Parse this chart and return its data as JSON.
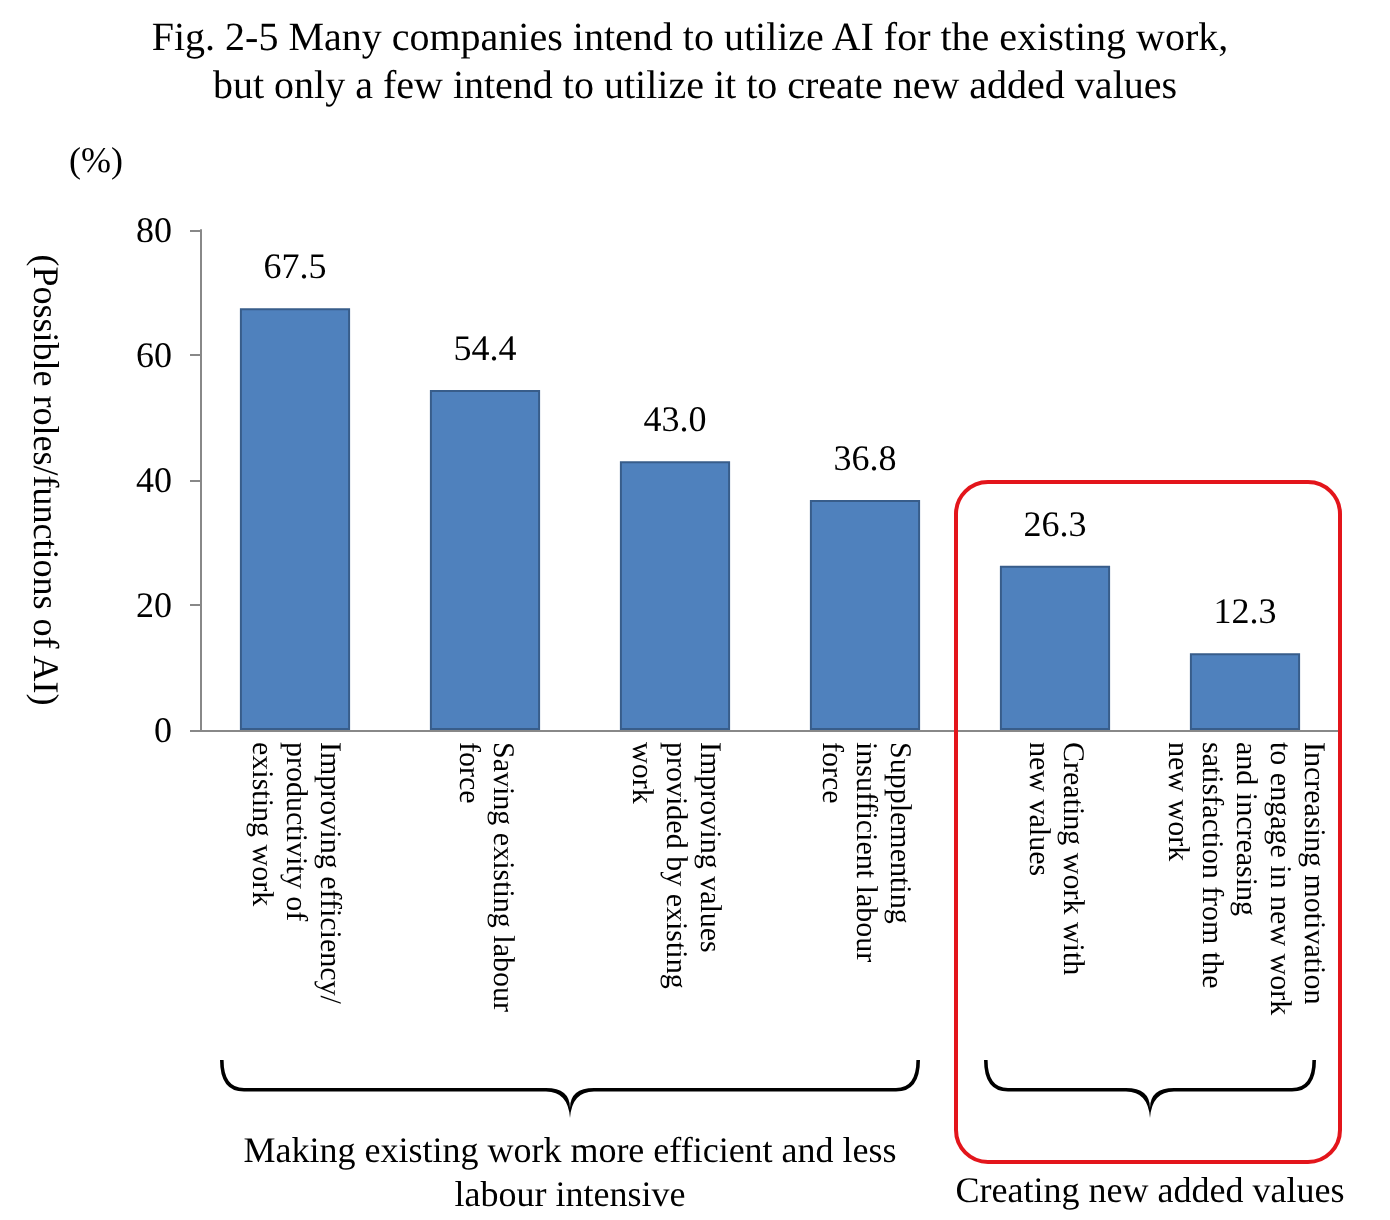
{
  "chart_data": {
    "type": "bar",
    "title": "Fig. 2-5 Many companies intend to utilize AI for the existing work, but only a few intend to utilize it to create new added values",
    "ylabel": "(Possible roles/functions of AI)",
    "categories": [
      "Improving efficiency/\nproductivity of\nexisting work",
      "Saving existing labour\nforce",
      "Improving values\nprovided by existing\nwork",
      "Supplementing\ninsufficient labour\nforce",
      "Creating work with\nnew values",
      "Increasing motivation\nto engage in new work\nand increasing\nsatisfaction from the\nnew work"
    ],
    "values": [
      67.5,
      54.4,
      43.0,
      36.8,
      26.3,
      12.3
    ],
    "value_labels": [
      "67.5",
      "54.4",
      "43.0",
      "36.8",
      "26.3",
      "12.3"
    ],
    "color": "#4f81bd",
    "ylim": [
      0,
      80
    ],
    "yticks": [
      0,
      20,
      40,
      60,
      80
    ],
    "annotations": [
      "(%)",
      "Making existing work more efficient and less labour intensive",
      "Creating new added values"
    ]
  }
}
